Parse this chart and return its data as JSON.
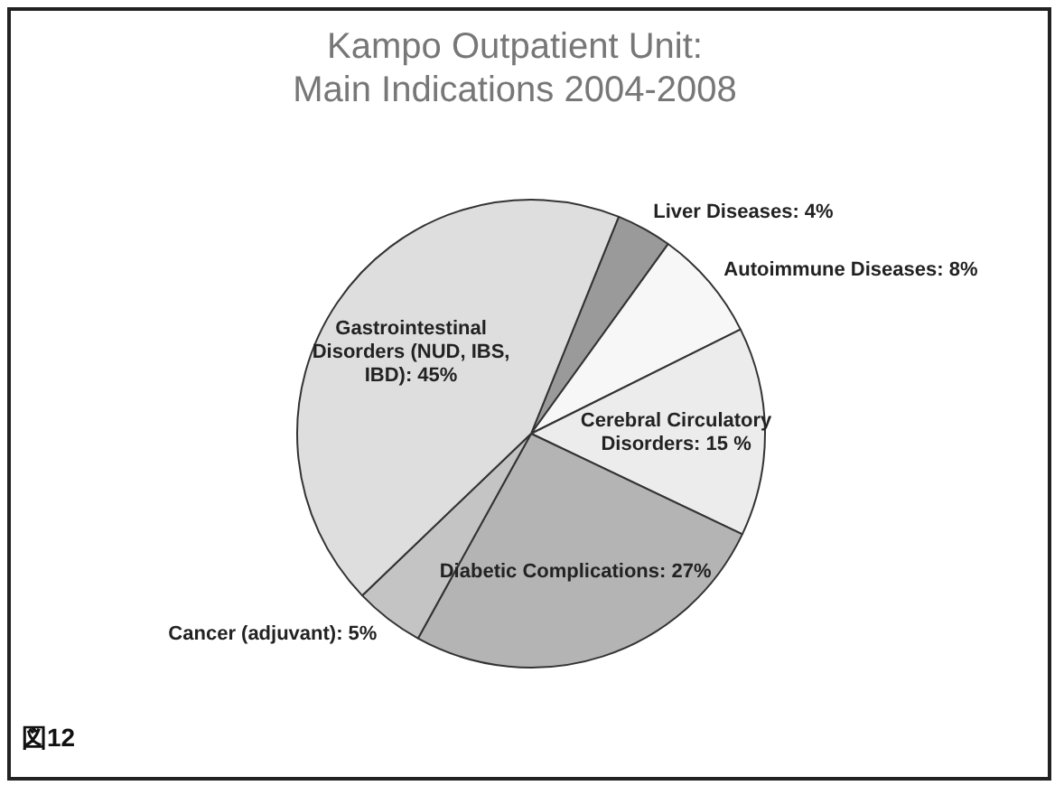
{
  "chart_data": {
    "type": "pie",
    "title": "Kampo Outpatient Unit: Main Indications 2004-2008",
    "categories": [
      "Liver Diseases",
      "Autoimmune Diseases",
      "Cerebral Circulatory Disorders",
      "Diabetic Complications",
      "Cancer (adjuvant)",
      "Gastrointestinal Disorders (NUD, IBS, IBD)"
    ],
    "values": [
      4,
      8,
      15,
      27,
      5,
      45
    ],
    "value_labels": [
      "4%",
      "8%",
      "15 %",
      "27%",
      "5%",
      "45%"
    ],
    "colors": [
      "#9a9a9a",
      "#f7f7f7",
      "#ececec",
      "#b4b4b4",
      "#c4c4c4",
      "#dedede"
    ],
    "annotations": [
      "図12"
    ],
    "legend": false
  }
}
